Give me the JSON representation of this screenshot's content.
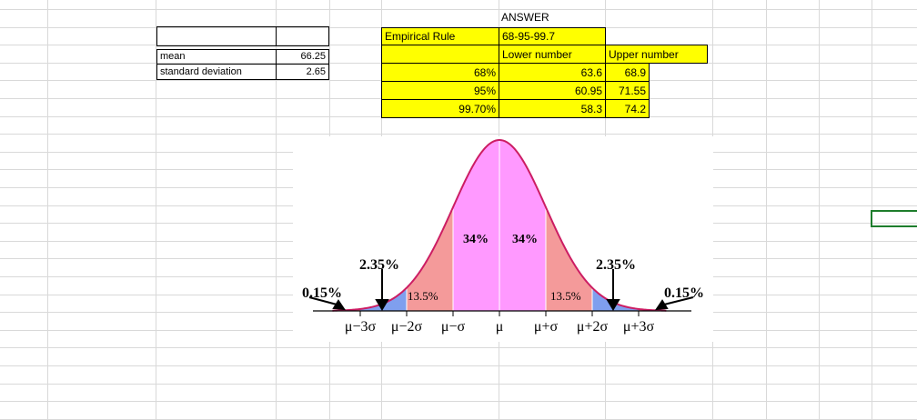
{
  "sheet": {
    "stats": {
      "mean_label": "mean",
      "mean_value": "66.25",
      "sd_label": "standard deviation",
      "sd_value": "2.65"
    },
    "answer_header": "ANSWER",
    "rule_label": "Empirical Rule",
    "rule_value": "68-95-99.7",
    "lower_header": "Lower number",
    "upper_header": "Upper number",
    "rows": [
      {
        "pct": "68%",
        "lower": "63.6",
        "upper": "68.9"
      },
      {
        "pct": "95%",
        "lower": "60.95",
        "upper": "71.55"
      },
      {
        "pct": "99.70%",
        "lower": "58.3",
        "upper": "74.2"
      }
    ]
  },
  "diagram": {
    "labels": {
      "center_left": "34%",
      "center_right": "34%",
      "band_left": "13.5%",
      "band_right": "13.5%",
      "tail2_left": "2.35%",
      "tail2_right": "2.35%",
      "tail3_left": "0.15%",
      "tail3_right": "0.15%"
    },
    "axis_ticks": [
      "μ−3σ",
      "μ−2σ",
      "μ−σ",
      "μ",
      "μ+σ",
      "μ+2σ",
      "μ+3σ"
    ],
    "colors": {
      "center": "#ff99ff",
      "band1": "#f49a9a",
      "band2": "#7f9fee",
      "band3": "#f26f7f",
      "curve": "#cc1d63"
    }
  }
}
